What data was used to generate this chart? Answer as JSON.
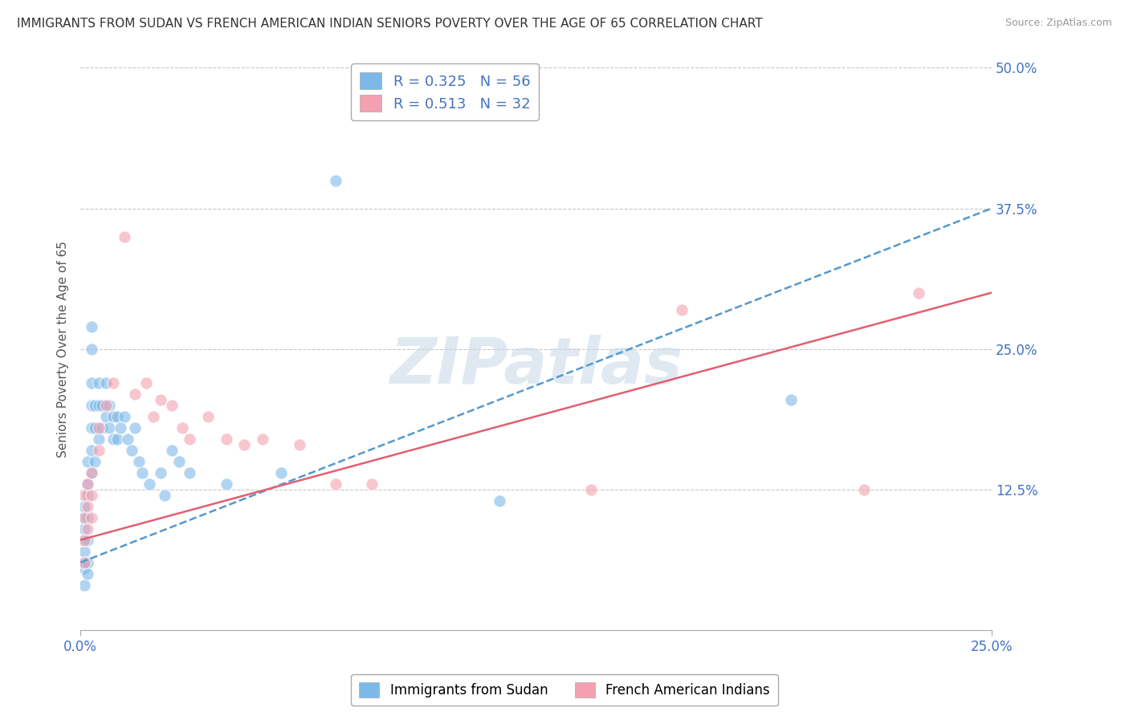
{
  "title": "IMMIGRANTS FROM SUDAN VS FRENCH AMERICAN INDIAN SENIORS POVERTY OVER THE AGE OF 65 CORRELATION CHART",
  "source": "Source: ZipAtlas.com",
  "ylabel": "Seniors Poverty Over the Age of 65",
  "x_min": 0.0,
  "x_max": 0.25,
  "y_min": 0.0,
  "y_max": 0.5,
  "y_ticks": [
    0.0,
    0.125,
    0.25,
    0.375,
    0.5
  ],
  "y_tick_labels": [
    "",
    "12.5%",
    "25.0%",
    "37.5%",
    "50.0%"
  ],
  "blue_color": "#7cb8e8",
  "pink_color": "#f4a0b0",
  "blue_scatter": [
    [
      0.001,
      0.055
    ],
    [
      0.001,
      0.07
    ],
    [
      0.001,
      0.08
    ],
    [
      0.001,
      0.09
    ],
    [
      0.001,
      0.1
    ],
    [
      0.001,
      0.11
    ],
    [
      0.001,
      0.06
    ],
    [
      0.001,
      0.04
    ],
    [
      0.002,
      0.12
    ],
    [
      0.002,
      0.13
    ],
    [
      0.002,
      0.15
    ],
    [
      0.002,
      0.1
    ],
    [
      0.002,
      0.08
    ],
    [
      0.002,
      0.06
    ],
    [
      0.002,
      0.05
    ],
    [
      0.003,
      0.14
    ],
    [
      0.003,
      0.16
    ],
    [
      0.003,
      0.18
    ],
    [
      0.003,
      0.2
    ],
    [
      0.003,
      0.22
    ],
    [
      0.003,
      0.25
    ],
    [
      0.003,
      0.27
    ],
    [
      0.004,
      0.15
    ],
    [
      0.004,
      0.18
    ],
    [
      0.004,
      0.2
    ],
    [
      0.005,
      0.17
    ],
    [
      0.005,
      0.2
    ],
    [
      0.005,
      0.22
    ],
    [
      0.006,
      0.18
    ],
    [
      0.006,
      0.2
    ],
    [
      0.007,
      0.19
    ],
    [
      0.007,
      0.22
    ],
    [
      0.008,
      0.18
    ],
    [
      0.008,
      0.2
    ],
    [
      0.009,
      0.17
    ],
    [
      0.009,
      0.19
    ],
    [
      0.01,
      0.17
    ],
    [
      0.01,
      0.19
    ],
    [
      0.011,
      0.18
    ],
    [
      0.012,
      0.19
    ],
    [
      0.013,
      0.17
    ],
    [
      0.014,
      0.16
    ],
    [
      0.015,
      0.18
    ],
    [
      0.016,
      0.15
    ],
    [
      0.017,
      0.14
    ],
    [
      0.019,
      0.13
    ],
    [
      0.022,
      0.14
    ],
    [
      0.023,
      0.12
    ],
    [
      0.025,
      0.16
    ],
    [
      0.027,
      0.15
    ],
    [
      0.03,
      0.14
    ],
    [
      0.04,
      0.13
    ],
    [
      0.055,
      0.14
    ],
    [
      0.115,
      0.115
    ],
    [
      0.07,
      0.4
    ],
    [
      0.195,
      0.205
    ]
  ],
  "pink_scatter": [
    [
      0.001,
      0.06
    ],
    [
      0.001,
      0.08
    ],
    [
      0.001,
      0.1
    ],
    [
      0.001,
      0.12
    ],
    [
      0.002,
      0.09
    ],
    [
      0.002,
      0.11
    ],
    [
      0.002,
      0.13
    ],
    [
      0.003,
      0.1
    ],
    [
      0.003,
      0.12
    ],
    [
      0.003,
      0.14
    ],
    [
      0.005,
      0.16
    ],
    [
      0.005,
      0.18
    ],
    [
      0.007,
      0.2
    ],
    [
      0.009,
      0.22
    ],
    [
      0.012,
      0.35
    ],
    [
      0.015,
      0.21
    ],
    [
      0.018,
      0.22
    ],
    [
      0.02,
      0.19
    ],
    [
      0.022,
      0.205
    ],
    [
      0.025,
      0.2
    ],
    [
      0.028,
      0.18
    ],
    [
      0.03,
      0.17
    ],
    [
      0.035,
      0.19
    ],
    [
      0.04,
      0.17
    ],
    [
      0.045,
      0.165
    ],
    [
      0.05,
      0.17
    ],
    [
      0.06,
      0.165
    ],
    [
      0.07,
      0.13
    ],
    [
      0.08,
      0.13
    ],
    [
      0.14,
      0.125
    ],
    [
      0.165,
      0.285
    ],
    [
      0.215,
      0.125
    ],
    [
      0.23,
      0.3
    ]
  ],
  "watermark": "ZIPatlas",
  "background_color": "#ffffff",
  "grid_color": "#c8c8c8",
  "title_fontsize": 11,
  "tick_fontsize": 12,
  "ylabel_fontsize": 11,
  "blue_trend": [
    0.0,
    0.06,
    0.25,
    0.375
  ],
  "pink_trend": [
    0.0,
    0.08,
    0.25,
    0.3
  ]
}
